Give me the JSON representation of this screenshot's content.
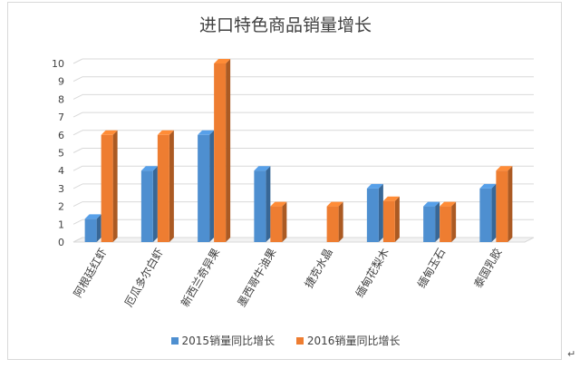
{
  "chart_data": {
    "type": "bar",
    "title": "进口特色商品销量增长",
    "categories": [
      "阿根廷红虾",
      "厄瓜多尔白虾",
      "新西兰奇异果",
      "墨西哥牛油果",
      "捷克水晶",
      "缅甸花梨木",
      "缅甸玉石",
      "泰国乳胶"
    ],
    "series": [
      {
        "name": "2015销量同比增长",
        "color": "#4e8fd0",
        "values": [
          1.3,
          4,
          6,
          4,
          0,
          3,
          2,
          3
        ]
      },
      {
        "name": "2016销量同比增长",
        "color": "#ee7d31",
        "values": [
          6,
          6,
          10,
          2,
          2,
          2.3,
          2,
          4
        ]
      }
    ],
    "yticks": [
      "0",
      "1",
      "2",
      "3",
      "4",
      "5",
      "6",
      "7",
      "8",
      "9",
      "10"
    ],
    "ylim": [
      0,
      10
    ],
    "grid": true,
    "legend_position": "bottom",
    "style": "3d-clustered-column"
  },
  "trailing_mark": "↵"
}
